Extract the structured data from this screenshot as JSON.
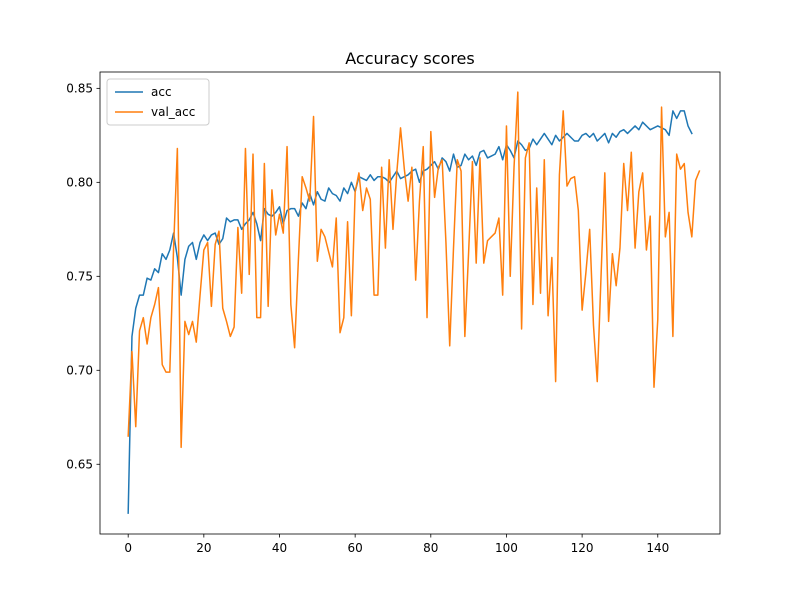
{
  "chart_data": {
    "type": "line",
    "title": "Accuracy scores",
    "xlabel": "",
    "ylabel": "",
    "xlim": [
      -7.45,
      156.45
    ],
    "ylim": [
      0.6129,
      0.8587
    ],
    "xticks": [
      0,
      20,
      40,
      60,
      80,
      100,
      120,
      140
    ],
    "yticks": [
      0.65,
      0.7,
      0.75,
      0.8,
      0.85
    ],
    "ytick_labels": [
      "0.65",
      "0.70",
      "0.75",
      "0.80",
      "0.85"
    ],
    "grid": false,
    "legend_position": "top-left",
    "series": [
      {
        "name": "acc",
        "color": "#1f77b4",
        "values": [
          0.624,
          0.718,
          0.733,
          0.74,
          0.74,
          0.749,
          0.748,
          0.754,
          0.752,
          0.762,
          0.759,
          0.764,
          0.773,
          0.76,
          0.74,
          0.759,
          0.766,
          0.768,
          0.759,
          0.768,
          0.772,
          0.769,
          0.772,
          0.773,
          0.767,
          0.77,
          0.781,
          0.779,
          0.78,
          0.78,
          0.775,
          0.778,
          0.78,
          0.784,
          0.778,
          0.769,
          0.786,
          0.783,
          0.782,
          0.784,
          0.787,
          0.778,
          0.785,
          0.786,
          0.786,
          0.782,
          0.789,
          0.786,
          0.794,
          0.788,
          0.795,
          0.791,
          0.79,
          0.797,
          0.794,
          0.793,
          0.79,
          0.797,
          0.794,
          0.8,
          0.795,
          0.803,
          0.802,
          0.801,
          0.804,
          0.801,
          0.803,
          0.803,
          0.802,
          0.8,
          0.803,
          0.806,
          0.802,
          0.803,
          0.804,
          0.806,
          0.807,
          0.8,
          0.806,
          0.807,
          0.809,
          0.811,
          0.807,
          0.813,
          0.811,
          0.806,
          0.815,
          0.808,
          0.809,
          0.815,
          0.812,
          0.814,
          0.809,
          0.816,
          0.817,
          0.813,
          0.814,
          0.815,
          0.819,
          0.812,
          0.82,
          0.817,
          0.813,
          0.822,
          0.82,
          0.817,
          0.818,
          0.823,
          0.82,
          0.823,
          0.826,
          0.823,
          0.82,
          0.825,
          0.822,
          0.824,
          0.826,
          0.824,
          0.822,
          0.822,
          0.825,
          0.826,
          0.824,
          0.826,
          0.822,
          0.824,
          0.826,
          0.821,
          0.826,
          0.824,
          0.827,
          0.828,
          0.826,
          0.828,
          0.83,
          0.828,
          0.832,
          0.83,
          0.828,
          0.829,
          0.83,
          0.829,
          0.828,
          0.825,
          0.838,
          0.834,
          0.838,
          0.838,
          0.83,
          0.826
        ]
      },
      {
        "name": "val_acc",
        "color": "#ff7f0e",
        "values": [
          0.665,
          0.71,
          0.67,
          0.721,
          0.728,
          0.714,
          0.728,
          0.735,
          0.744,
          0.703,
          0.699,
          0.699,
          0.765,
          0.818,
          0.659,
          0.726,
          0.719,
          0.726,
          0.715,
          0.74,
          0.764,
          0.768,
          0.734,
          0.767,
          0.774,
          0.733,
          0.726,
          0.718,
          0.723,
          0.776,
          0.741,
          0.818,
          0.751,
          0.815,
          0.728,
          0.728,
          0.81,
          0.734,
          0.796,
          0.772,
          0.783,
          0.773,
          0.819,
          0.735,
          0.712,
          0.759,
          0.803,
          0.797,
          0.79,
          0.835,
          0.758,
          0.775,
          0.771,
          0.763,
          0.755,
          0.781,
          0.72,
          0.728,
          0.779,
          0.729,
          0.795,
          0.805,
          0.785,
          0.797,
          0.791,
          0.74,
          0.74,
          0.808,
          0.765,
          0.812,
          0.775,
          0.805,
          0.829,
          0.807,
          0.79,
          0.808,
          0.748,
          0.79,
          0.819,
          0.728,
          0.827,
          0.792,
          0.808,
          0.812,
          0.768,
          0.713,
          0.765,
          0.812,
          0.806,
          0.718,
          0.763,
          0.811,
          0.757,
          0.813,
          0.757,
          0.769,
          0.771,
          0.773,
          0.781,
          0.74,
          0.83,
          0.75,
          0.808,
          0.848,
          0.722,
          0.813,
          0.821,
          0.735,
          0.797,
          0.741,
          0.812,
          0.729,
          0.76,
          0.694,
          0.804,
          0.838,
          0.798,
          0.802,
          0.803,
          0.785,
          0.732,
          0.752,
          0.775,
          0.724,
          0.694,
          0.75,
          0.805,
          0.726,
          0.762,
          0.745,
          0.765,
          0.81,
          0.785,
          0.816,
          0.765,
          0.795,
          0.805,
          0.764,
          0.782,
          0.691,
          0.727,
          0.84,
          0.771,
          0.784,
          0.718,
          0.815,
          0.807,
          0.81,
          0.784,
          0.771,
          0.801,
          0.806
        ]
      }
    ]
  }
}
